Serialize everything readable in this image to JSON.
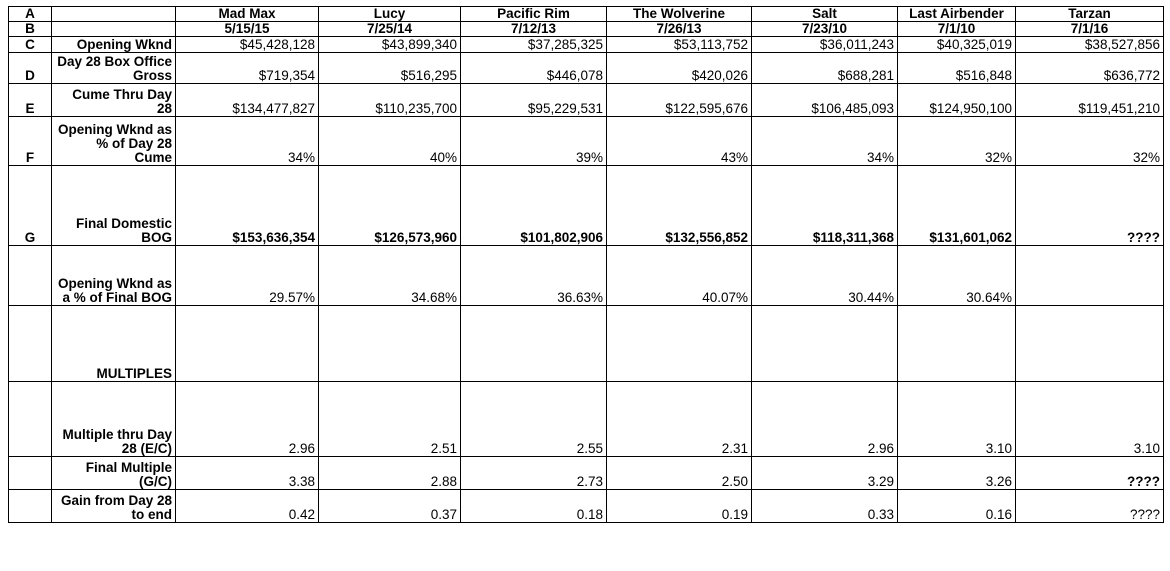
{
  "row_letters": [
    "A",
    "B",
    "C",
    "D",
    "E",
    "F",
    "G"
  ],
  "movies": [
    {
      "title": "Mad Max",
      "date": "5/15/15"
    },
    {
      "title": "Lucy",
      "date": "7/25/14"
    },
    {
      "title": "Pacific Rim",
      "date": "7/12/13"
    },
    {
      "title": "The Wolverine",
      "date": "7/26/13"
    },
    {
      "title": "Salt",
      "date": "7/23/10"
    },
    {
      "title": "Last Airbender",
      "date": "7/1/10"
    },
    {
      "title": "Tarzan",
      "date": "7/1/16"
    }
  ],
  "rows": [
    {
      "letter": "C",
      "label": "Opening Wknd",
      "values": [
        "$45,428,128",
        "$43,899,340",
        "$37,285,325",
        "$53,113,752",
        "$36,011,243",
        "$40,325,019",
        "$38,527,856"
      ]
    },
    {
      "letter": "D",
      "label": "Day 28 Box Office Gross",
      "values": [
        "$719,354",
        "$516,295",
        "$446,078",
        "$420,026",
        "$688,281",
        "$516,848",
        "$636,772"
      ]
    },
    {
      "letter": "E",
      "label": "Cume Thru Day 28",
      "values": [
        "$134,477,827",
        "$110,235,700",
        "$95,229,531",
        "$122,595,676",
        "$106,485,093",
        "$124,950,100",
        "$119,451,210"
      ]
    },
    {
      "letter": "F",
      "label": "Opening Wknd as % of Day 28 Cume",
      "values": [
        "34%",
        "40%",
        "39%",
        "43%",
        "34%",
        "32%",
        "32%"
      ]
    },
    {
      "letter": "G",
      "label": "Final Domestic BOG",
      "values": [
        "$153,636,354",
        "$126,573,960",
        "$101,802,906",
        "$132,556,852",
        "$118,311,368",
        "$131,601,062",
        "????"
      ]
    },
    {
      "letter": "",
      "label": "Opening Wknd as a % of Final BOG",
      "values": [
        "29.57%",
        "34.68%",
        "36.63%",
        "40.07%",
        "30.44%",
        "30.64%",
        ""
      ]
    },
    {
      "letter": "",
      "label": "MULTIPLES",
      "values": [
        "",
        "",
        "",
        "",
        "",
        "",
        ""
      ]
    },
    {
      "letter": "",
      "label": "Multiple thru Day 28 (E/C)",
      "values": [
        "2.96",
        "2.51",
        "2.55",
        "2.31",
        "2.96",
        "3.10",
        "3.10"
      ]
    },
    {
      "letter": "",
      "label": "Final Multiple (G/C)",
      "values": [
        "3.38",
        "2.88",
        "2.73",
        "2.50",
        "3.29",
        "3.26",
        "????"
      ]
    },
    {
      "letter": "",
      "label": "Gain from Day 28 to end",
      "values": [
        "0.42",
        "0.37",
        "0.18",
        "0.19",
        "0.33",
        "0.16",
        "????"
      ]
    }
  ]
}
